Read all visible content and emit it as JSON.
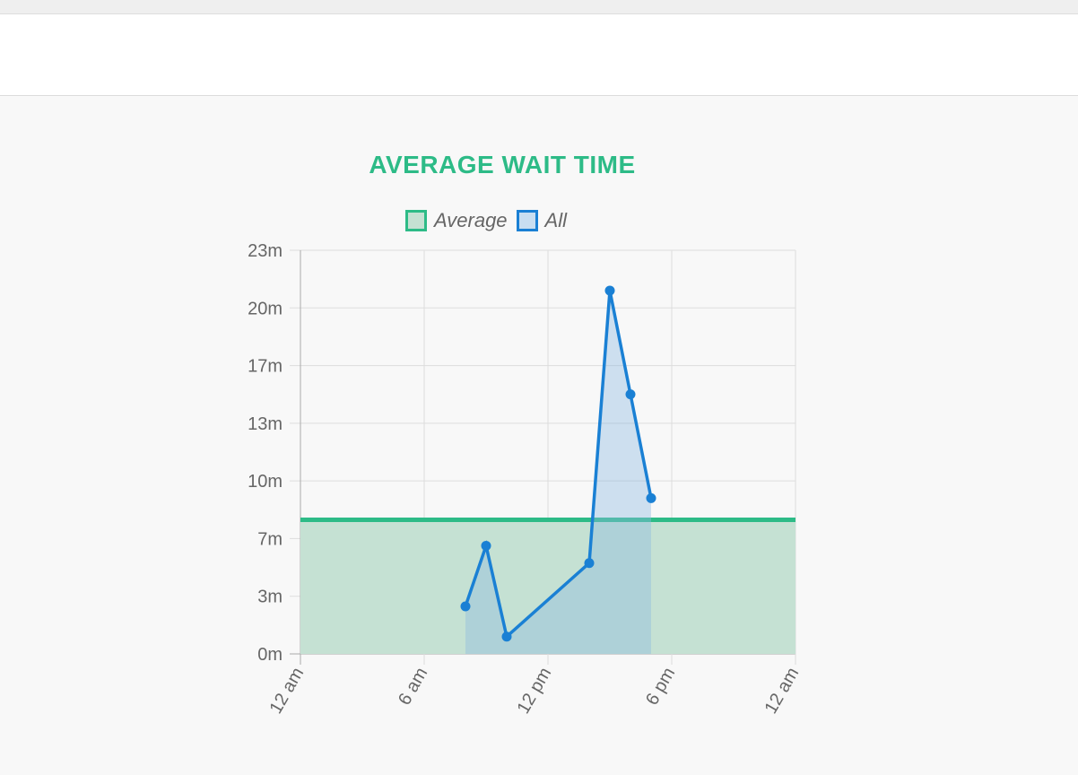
{
  "chart_data": {
    "type": "line",
    "title": "AVERAGE WAIT TIME",
    "xlabel": "",
    "ylabel": "",
    "x_ticks": [
      "12 am",
      "6 am",
      "12 pm",
      "6 pm",
      "12 am"
    ],
    "y_ticks": [
      "0m",
      "3m",
      "7m",
      "10m",
      "13m",
      "17m",
      "20m",
      "23m"
    ],
    "xlim": [
      0,
      24
    ],
    "ylim": [
      0,
      23.33
    ],
    "grid": true,
    "legend_position": "top",
    "series": [
      {
        "name": "Average",
        "type": "area-line",
        "color": "#2dbb87",
        "fill": "#c5e1d3",
        "points": [
          [
            0,
            7.75
          ],
          [
            24,
            7.75
          ]
        ]
      },
      {
        "name": "All",
        "type": "area-line",
        "color": "#1a80d4",
        "fill": "rgba(140,185,225,0.4)",
        "points": [
          [
            8,
            2.75
          ],
          [
            9,
            6.25
          ],
          [
            10,
            1.0
          ],
          [
            14,
            5.25
          ],
          [
            15,
            21.0
          ],
          [
            16,
            15.0
          ],
          [
            17,
            9.0
          ]
        ]
      }
    ]
  },
  "colors": {
    "title": "#2dbb87",
    "grid": "#dddddd",
    "axis": "#aaaaaa"
  }
}
